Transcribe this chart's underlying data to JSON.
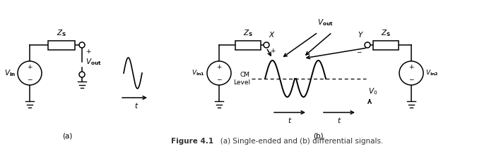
{
  "fig_width": 6.75,
  "fig_height": 2.12,
  "dpi": 100,
  "bg_color": "#ffffff",
  "caption_bold": "Figure 4.1",
  "caption_rest": "   (a) Single-ended and (b) differential signals.",
  "label_a": "(a)",
  "label_b": "(b)"
}
